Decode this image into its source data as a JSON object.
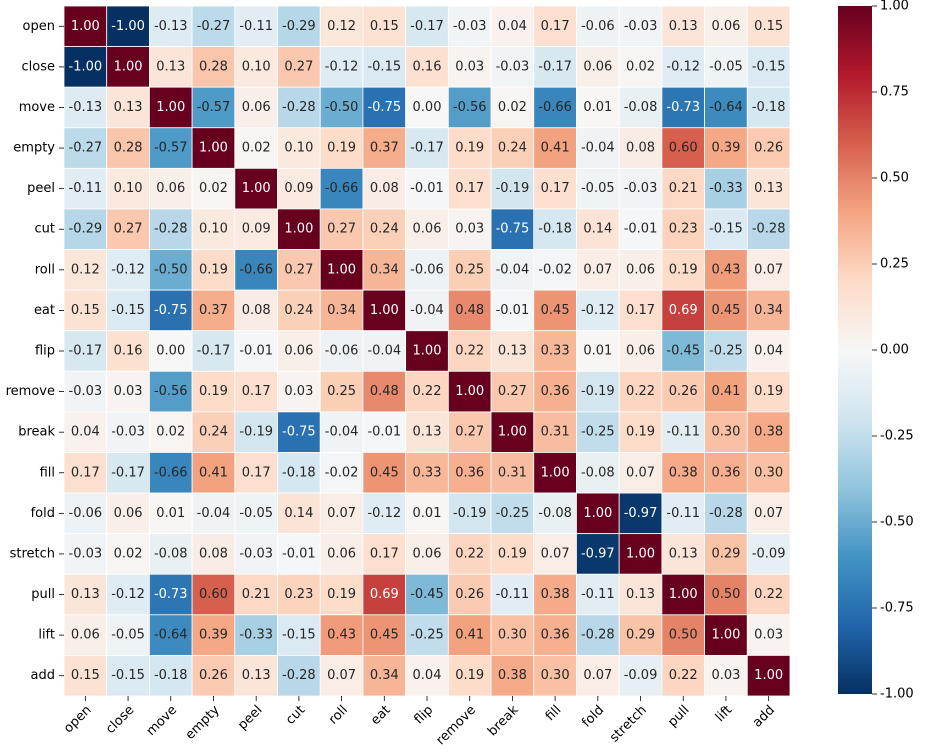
{
  "chart_data": {
    "type": "heatmap",
    "title": "",
    "xlabel": "",
    "ylabel": "",
    "labels": [
      "open",
      "close",
      "move",
      "empty",
      "peel",
      "cut",
      "roll",
      "eat",
      "flip",
      "remove",
      "break",
      "fill",
      "fold",
      "stretch",
      "pull",
      "lift",
      "add"
    ],
    "matrix": [
      [
        "1.00",
        "-1.00",
        "-0.13",
        "-0.27",
        "-0.11",
        "-0.29",
        "0.12",
        "0.15",
        "-0.17",
        "-0.03",
        "0.04",
        "0.17",
        "-0.06",
        "-0.03",
        "0.13",
        "0.06",
        "0.15"
      ],
      [
        "-1.00",
        "1.00",
        "0.13",
        "0.28",
        "0.10",
        "0.27",
        "-0.12",
        "-0.15",
        "0.16",
        "0.03",
        "-0.03",
        "-0.17",
        "0.06",
        "0.02",
        "-0.12",
        "-0.05",
        "-0.15"
      ],
      [
        "-0.13",
        "0.13",
        "1.00",
        "-0.57",
        "0.06",
        "-0.28",
        "-0.50",
        "-0.75",
        "0.00",
        "-0.56",
        "0.02",
        "-0.66",
        "0.01",
        "-0.08",
        "-0.73",
        "-0.64",
        "-0.18"
      ],
      [
        "-0.27",
        "0.28",
        "-0.57",
        "1.00",
        "0.02",
        "0.10",
        "0.19",
        "0.37",
        "-0.17",
        "0.19",
        "0.24",
        "0.41",
        "-0.04",
        "0.08",
        "0.60",
        "0.39",
        "0.26"
      ],
      [
        "-0.11",
        "0.10",
        "0.06",
        "0.02",
        "1.00",
        "0.09",
        "-0.66",
        "0.08",
        "-0.01",
        "0.17",
        "-0.19",
        "0.17",
        "-0.05",
        "-0.03",
        "0.21",
        "-0.33",
        "0.13"
      ],
      [
        "-0.29",
        "0.27",
        "-0.28",
        "0.10",
        "0.09",
        "1.00",
        "0.27",
        "0.24",
        "0.06",
        "0.03",
        "-0.75",
        "-0.18",
        "0.14",
        "-0.01",
        "0.23",
        "-0.15",
        "-0.28"
      ],
      [
        "0.12",
        "-0.12",
        "-0.50",
        "0.19",
        "-0.66",
        "0.27",
        "1.00",
        "0.34",
        "-0.06",
        "0.25",
        "-0.04",
        "-0.02",
        "0.07",
        "0.06",
        "0.19",
        "0.43",
        "0.07"
      ],
      [
        "0.15",
        "-0.15",
        "-0.75",
        "0.37",
        "0.08",
        "0.24",
        "0.34",
        "1.00",
        "-0.04",
        "0.48",
        "-0.01",
        "0.45",
        "-0.12",
        "0.17",
        "0.69",
        "0.45",
        "0.34"
      ],
      [
        "-0.17",
        "0.16",
        "0.00",
        "-0.17",
        "-0.01",
        "0.06",
        "-0.06",
        "-0.04",
        "1.00",
        "0.22",
        "0.13",
        "0.33",
        "0.01",
        "0.06",
        "-0.45",
        "-0.25",
        "0.04"
      ],
      [
        "-0.03",
        "0.03",
        "-0.56",
        "0.19",
        "0.17",
        "0.03",
        "0.25",
        "0.48",
        "0.22",
        "1.00",
        "0.27",
        "0.36",
        "-0.19",
        "0.22",
        "0.26",
        "0.41",
        "0.19"
      ],
      [
        "0.04",
        "-0.03",
        "0.02",
        "0.24",
        "-0.19",
        "-0.75",
        "-0.04",
        "-0.01",
        "0.13",
        "0.27",
        "1.00",
        "0.31",
        "-0.25",
        "0.19",
        "-0.11",
        "0.30",
        "0.38"
      ],
      [
        "0.17",
        "-0.17",
        "-0.66",
        "0.41",
        "0.17",
        "-0.18",
        "-0.02",
        "0.45",
        "0.33",
        "0.36",
        "0.31",
        "1.00",
        "-0.08",
        "0.07",
        "0.38",
        "0.36",
        "0.30"
      ],
      [
        "-0.06",
        "0.06",
        "0.01",
        "-0.04",
        "-0.05",
        "0.14",
        "0.07",
        "-0.12",
        "0.01",
        "-0.19",
        "-0.25",
        "-0.08",
        "1.00",
        "-0.97",
        "-0.11",
        "-0.28",
        "0.07"
      ],
      [
        "-0.03",
        "0.02",
        "-0.08",
        "0.08",
        "-0.03",
        "-0.01",
        "0.06",
        "0.17",
        "0.06",
        "0.22",
        "0.19",
        "0.07",
        "-0.97",
        "1.00",
        "0.13",
        "0.29",
        "-0.09"
      ],
      [
        "0.13",
        "-0.12",
        "-0.73",
        "0.60",
        "0.21",
        "0.23",
        "0.19",
        "0.69",
        "-0.45",
        "0.26",
        "-0.11",
        "0.38",
        "-0.11",
        "0.13",
        "1.00",
        "0.50",
        "0.22"
      ],
      [
        "0.06",
        "-0.05",
        "-0.64",
        "0.39",
        "-0.33",
        "-0.15",
        "0.43",
        "0.45",
        "-0.25",
        "0.41",
        "0.30",
        "0.36",
        "-0.28",
        "0.29",
        "0.50",
        "1.00",
        "0.03"
      ],
      [
        "0.15",
        "-0.15",
        "-0.18",
        "0.26",
        "0.13",
        "-0.28",
        "0.07",
        "0.34",
        "0.04",
        "0.19",
        "0.38",
        "0.30",
        "0.07",
        "-0.09",
        "0.22",
        "0.03",
        "1.00"
      ]
    ],
    "vmin": -1.0,
    "vmax": 1.0,
    "colormap": "RdBu_r",
    "colorbar": {
      "ticks": [
        "1.00",
        "0.75",
        "0.50",
        "0.25",
        "0.00",
        "-0.25",
        "-0.50",
        "-0.75",
        "-1.00"
      ],
      "placement": "right"
    },
    "grid_color": "#ffffff",
    "colors": {
      "neg_extreme": "#053061",
      "neutral": "#f7f7f7",
      "pos_extreme": "#67001f"
    }
  }
}
